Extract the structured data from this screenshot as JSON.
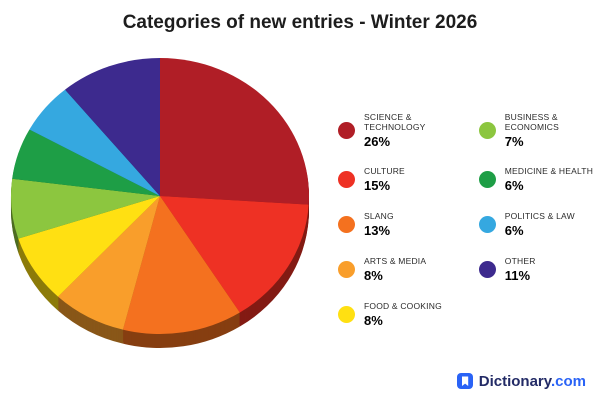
{
  "title": "Categories of new entries - Winter 2026",
  "chart_data": {
    "type": "pie",
    "title": "Categories of new entries - Winter 2026",
    "start_angle_deg": -90,
    "direction": "clockwise",
    "legend_position": "right",
    "legend_columns": 2,
    "style": "3d-pie",
    "series": [
      {
        "label": "SCIENCE & TECHNOLOGY",
        "value": 26,
        "color": "#B01E26"
      },
      {
        "label": "CULTURE",
        "value": 15,
        "color": "#EE3124"
      },
      {
        "label": "SLANG",
        "value": 13,
        "color": "#F4711F"
      },
      {
        "label": "ARTS & MEDIA",
        "value": 8,
        "color": "#F99E2B"
      },
      {
        "label": "FOOD & COOKING",
        "value": 8,
        "color": "#FFE012"
      },
      {
        "label": "BUSINESS & ECONOMICS",
        "value": 7,
        "color": "#8CC63F"
      },
      {
        "label": "MEDICINE & HEALTH",
        "value": 6,
        "color": "#1E9E46"
      },
      {
        "label": "POLITICS & LAW",
        "value": 6,
        "color": "#35A8E0"
      },
      {
        "label": "OTHER",
        "value": 11,
        "color": "#3D2A8E"
      }
    ]
  },
  "legend": {
    "left_column_count": 5,
    "value_suffix": "%"
  },
  "footer": {
    "brand_primary": "Dictionary",
    "brand_secondary": ".com"
  }
}
